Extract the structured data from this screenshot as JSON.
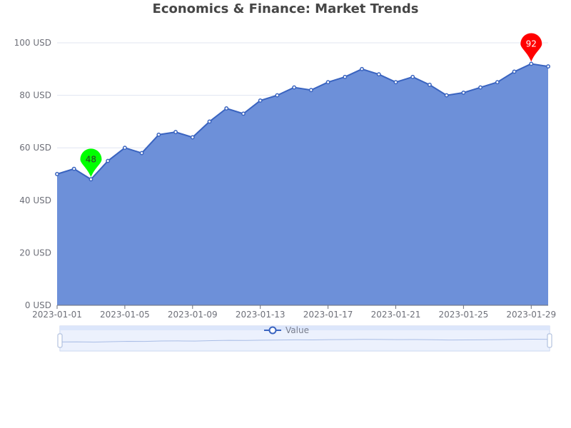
{
  "chart_data": {
    "type": "area",
    "title": "Economics & Finance: Market Trends",
    "xlabel": "",
    "ylabel": "",
    "x": [
      "2023-01-01",
      "2023-01-02",
      "2023-01-03",
      "2023-01-04",
      "2023-01-05",
      "2023-01-06",
      "2023-01-07",
      "2023-01-08",
      "2023-01-09",
      "2023-01-10",
      "2023-01-11",
      "2023-01-12",
      "2023-01-13",
      "2023-01-14",
      "2023-01-15",
      "2023-01-16",
      "2023-01-17",
      "2023-01-18",
      "2023-01-19",
      "2023-01-20",
      "2023-01-21",
      "2023-01-22",
      "2023-01-23",
      "2023-01-24",
      "2023-01-25",
      "2023-01-26",
      "2023-01-27",
      "2023-01-28",
      "2023-01-29",
      "2023-01-30"
    ],
    "x_tick_labels": [
      "2023-01-01",
      "2023-01-05",
      "2023-01-09",
      "2023-01-13",
      "2023-01-17",
      "2023-01-21",
      "2023-01-25",
      "2023-01-29"
    ],
    "series": [
      {
        "name": "Value",
        "values": [
          50,
          52,
          48,
          55,
          60,
          58,
          65,
          66,
          64,
          70,
          75,
          73,
          78,
          80,
          83,
          82,
          85,
          87,
          90,
          88,
          85,
          87,
          84,
          80,
          81,
          83,
          85,
          89,
          92,
          91
        ]
      }
    ],
    "ylim": [
      0,
      100
    ],
    "y_ticks": [
      0,
      20,
      40,
      60,
      80,
      100
    ],
    "y_unit": "USD",
    "y_tick_labels": [
      "0 USD",
      "20 USD",
      "40 USD",
      "60 USD",
      "80 USD",
      "100 USD"
    ],
    "markers": {
      "max": {
        "x": "2023-01-29",
        "value": 92,
        "label": "92",
        "color": "#ff0000"
      },
      "min": {
        "x": "2023-01-03",
        "value": 48,
        "label": "48",
        "color": "#00ff00"
      }
    },
    "grid": true,
    "legend": {
      "position": "bottom",
      "label": "Value"
    },
    "colors": {
      "line": "#3a64c0",
      "area": "#6d90d9",
      "axis": "#6e7079",
      "grid": "#e0e6f1",
      "slider_fill": "#dce6fb",
      "slider_border": "#c4d2ee"
    },
    "data_zoom": {
      "range_percent": [
        0,
        100
      ]
    }
  }
}
